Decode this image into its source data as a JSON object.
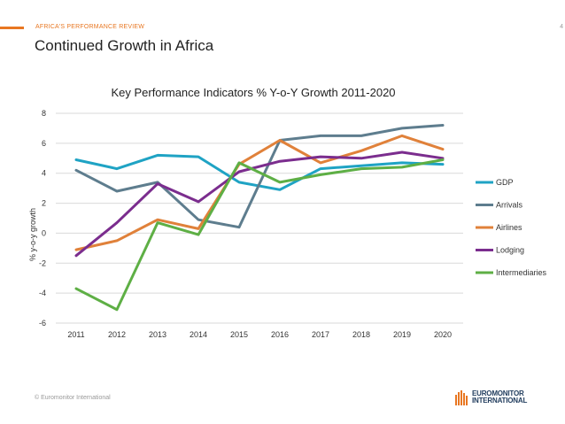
{
  "header": {
    "section": "AFRICA'S PERFORMANCE REVIEW",
    "page_number": "4",
    "title": "Continued Growth in Africa"
  },
  "footer": {
    "copyright": "© Euromonitor International",
    "logo_line1": "EUROMONITOR",
    "logo_line2": "INTERNATIONAL"
  },
  "chart_data": {
    "type": "line",
    "title": "Key Performance Indicators % Y-o-Y Growth 2011-2020",
    "xlabel": "",
    "ylabel": "% y-o-y growth",
    "ylim": [
      -6,
      8
    ],
    "yticks": [
      "8",
      "6",
      "4",
      "2",
      "0",
      "-2",
      "-4",
      "-6"
    ],
    "ytick_values": [
      8,
      6,
      4,
      2,
      0,
      -2,
      -4,
      -6
    ],
    "grid": true,
    "legend_position": "right",
    "categories": [
      "2011",
      "2012",
      "2013",
      "2014",
      "2015",
      "2016",
      "2017",
      "2018",
      "2019",
      "2020"
    ],
    "series": [
      {
        "name": "GDP",
        "color": "#1fa3c4",
        "values": [
          4.9,
          4.3,
          5.2,
          5.1,
          3.4,
          2.9,
          4.3,
          4.5,
          4.7,
          4.6
        ]
      },
      {
        "name": "Arrivals",
        "color": "#5e7d8e",
        "values": [
          4.2,
          2.8,
          3.4,
          0.9,
          0.4,
          6.2,
          6.5,
          6.5,
          7.0,
          7.2
        ]
      },
      {
        "name": "Airlines",
        "color": "#e0813a",
        "values": [
          -1.1,
          -0.5,
          0.9,
          0.3,
          4.6,
          6.2,
          4.7,
          5.5,
          6.5,
          5.6
        ]
      },
      {
        "name": "Lodging",
        "color": "#7b2d8e",
        "values": [
          -1.5,
          0.7,
          3.3,
          2.1,
          4.1,
          4.8,
          5.1,
          5.0,
          5.4,
          5.0
        ]
      },
      {
        "name": "Intermediaries",
        "color": "#5eaf45",
        "values": [
          -3.7,
          -5.1,
          0.7,
          -0.1,
          4.7,
          3.4,
          3.9,
          4.3,
          4.4,
          4.9
        ]
      }
    ]
  }
}
